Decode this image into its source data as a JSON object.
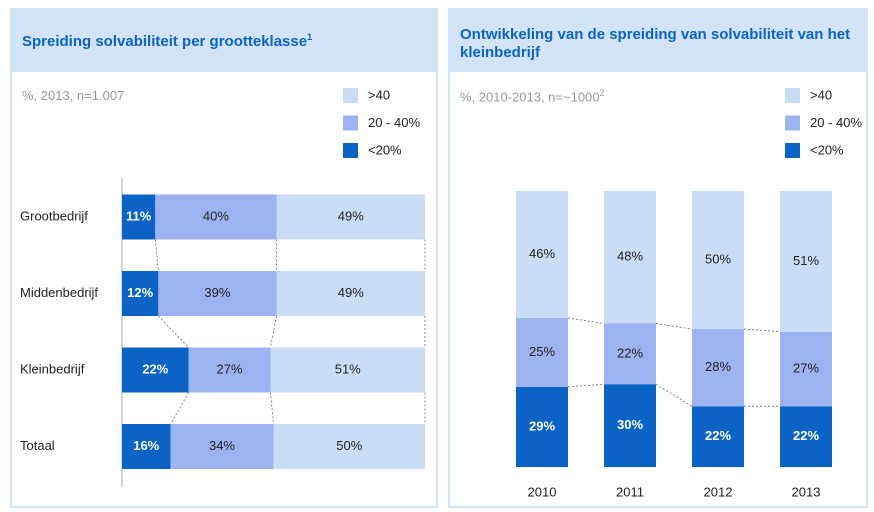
{
  "chart_data": [
    {
      "type": "bar",
      "orientation": "horizontal",
      "stacked": true,
      "title": "Spreiding solvabiliteit per grootteklasse",
      "title_footnote": "1",
      "subtitle": "%, 2013, n=1.007",
      "categories": [
        "Grootbedrijf",
        "Middenbedrijf",
        "Kleinbedrijf",
        "Totaal"
      ],
      "xlim": [
        0,
        100
      ],
      "series": [
        {
          "name": "<20%",
          "color": "#0b63c6",
          "values": [
            11,
            12,
            22,
            16
          ],
          "value_labels": [
            "11%",
            "12%",
            "22%",
            "16%"
          ]
        },
        {
          "name": "20 - 40%",
          "color": "#9cb3f2",
          "values": [
            40,
            39,
            27,
            34
          ],
          "value_labels": [
            "40%",
            "39%",
            "27%",
            "34%"
          ]
        },
        {
          "name": ">40",
          "color": "#c9ddf6",
          "values": [
            49,
            49,
            51,
            50
          ],
          "value_labels": [
            "49%",
            "49%",
            "51%",
            "50%"
          ]
        }
      ]
    },
    {
      "type": "bar",
      "orientation": "vertical",
      "stacked": true,
      "title": "Ontwikkeling van de spreiding van solvabiliteit van het kleinbedrijf",
      "subtitle": "%, 2010-2013, n=~1000",
      "subtitle_footnote": "2",
      "categories": [
        "2010",
        "2011",
        "2012",
        "2013"
      ],
      "ylim": [
        0,
        100
      ],
      "series": [
        {
          "name": "<20%",
          "color": "#0b63c6",
          "values": [
            29,
            30,
            22,
            22
          ],
          "value_labels": [
            "29%",
            "30%",
            "22%",
            "22%"
          ]
        },
        {
          "name": "20 - 40%",
          "color": "#9cb3f2",
          "values": [
            25,
            22,
            28,
            27
          ],
          "value_labels": [
            "25%",
            "22%",
            "28%",
            "27%"
          ]
        },
        {
          "name": ">40",
          "color": "#c9ddf6",
          "values": [
            46,
            48,
            50,
            51
          ],
          "value_labels": [
            "46%",
            "48%",
            "50%",
            "51%"
          ]
        }
      ]
    }
  ]
}
